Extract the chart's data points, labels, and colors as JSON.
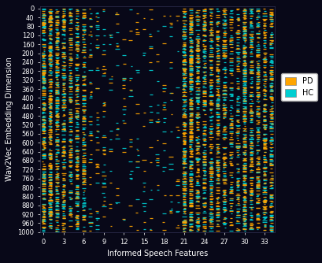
{
  "xlabel": "Informed Speech Features",
  "ylabel": "Wav2Vec Embedding Dimension",
  "xlim": [
    -0.5,
    34.5
  ],
  "ylim": [
    1000,
    -10
  ],
  "xticks": [
    0,
    3,
    6,
    9,
    12,
    15,
    18,
    21,
    24,
    27,
    30,
    33
  ],
  "yticks": [
    0,
    40,
    80,
    120,
    160,
    200,
    240,
    280,
    320,
    360,
    400,
    440,
    480,
    520,
    560,
    600,
    640,
    680,
    720,
    760,
    800,
    840,
    880,
    920,
    960,
    1000
  ],
  "pd_color": "#FFA500",
  "hc_color": "#00CED1",
  "bg_color": "#080818",
  "n_features": 35,
  "n_dims": 1000,
  "seed": 42,
  "legend_pd": "PD",
  "legend_hc": "HC",
  "feature_weights": [
    0.12,
    0.14,
    0.1,
    0.1,
    0.09,
    0.08,
    0.07,
    0.02,
    0.02,
    0.02,
    0.01,
    0.01,
    0.01,
    0.01,
    0.01,
    0.01,
    0.01,
    0.01,
    0.01,
    0.01,
    0.01,
    0.14,
    0.13,
    0.1,
    0.1,
    0.09,
    0.1,
    0.08,
    0.06,
    0.06,
    0.14,
    0.1,
    0.1,
    0.1,
    0.1
  ]
}
